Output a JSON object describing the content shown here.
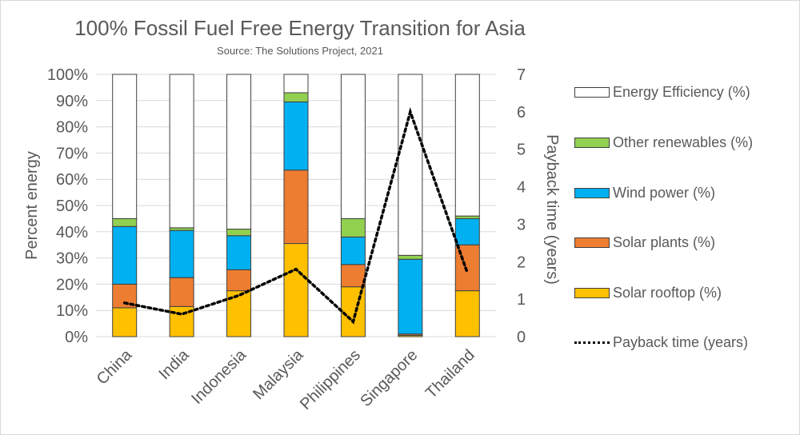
{
  "chart_data": {
    "type": "bar",
    "stacked": true,
    "title": "100% Fossil Fuel Free Energy Transition for Asia",
    "subtitle": "Source: The Solutions Project, 2021",
    "ylabel": "Percent energy",
    "y2label": "Payback time (years)",
    "categories": [
      "China",
      "India",
      "Indonesia",
      "Malaysia",
      "Philippines",
      "Singapore",
      "Thailand"
    ],
    "ylim": [
      0,
      100
    ],
    "y2lim": [
      0,
      7
    ],
    "y_ticks": [
      "0%",
      "10%",
      "20%",
      "30%",
      "40%",
      "50%",
      "60%",
      "70%",
      "80%",
      "90%",
      "100%"
    ],
    "y2_ticks": [
      "0",
      "1",
      "2",
      "3",
      "4",
      "5",
      "6",
      "7"
    ],
    "series": [
      {
        "name": "Solar rooftop (%)",
        "color": "#ffc000",
        "values": [
          11,
          11.5,
          17.5,
          35.5,
          19,
          0.5,
          17.5
        ]
      },
      {
        "name": "Solar plants (%)",
        "color": "#ed7d31",
        "values": [
          9,
          11,
          8,
          28,
          8.5,
          0.5,
          17.5
        ]
      },
      {
        "name": "Wind power (%)",
        "color": "#00b0f0",
        "values": [
          22,
          18,
          13,
          26,
          10.5,
          28.5,
          10
        ]
      },
      {
        "name": "Other renewables (%)",
        "color": "#92d050",
        "values": [
          3,
          1,
          2.5,
          3.5,
          7,
          1.5,
          1
        ]
      },
      {
        "name": "Energy Efficiency (%)",
        "color": "#ffffff",
        "values": [
          55,
          58.5,
          59,
          7,
          55,
          69,
          54
        ]
      }
    ],
    "line": {
      "name": "Payback time (years)",
      "color": "#000000",
      "values": [
        0.9,
        0.6,
        1.1,
        1.8,
        0.4,
        6.0,
        1.7
      ]
    },
    "legend_order": [
      "Energy Efficiency (%)",
      "Other renewables (%)",
      "Wind power (%)",
      "Solar plants (%)",
      "Solar rooftop (%)",
      "Payback time (years)"
    ],
    "legend_position": "right",
    "grid": true
  }
}
